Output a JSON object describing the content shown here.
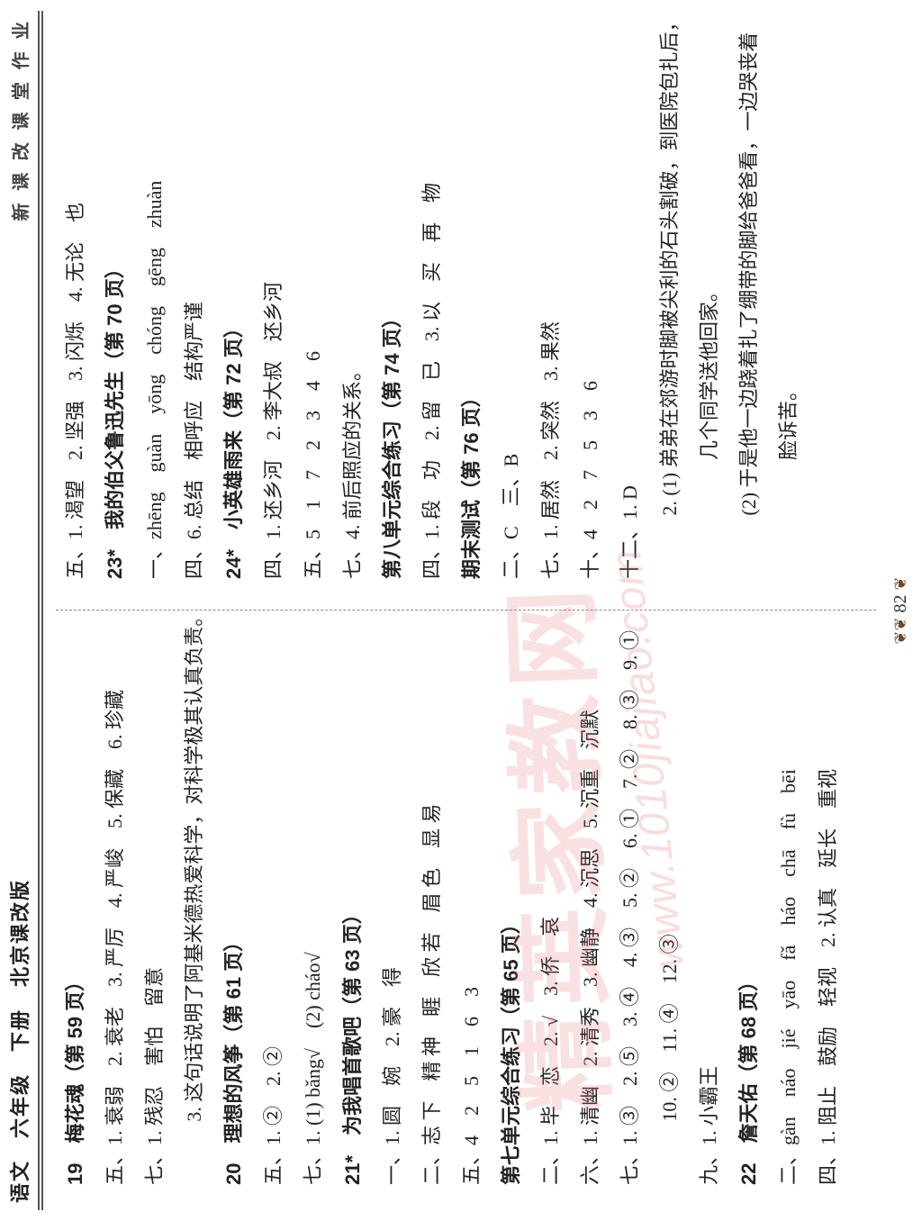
{
  "header": {
    "left": "语文　六年级　下册　北京课改版",
    "right": "新 课 改 课 堂 作 业"
  },
  "watermark": {
    "main": "精英家教网",
    "url": "www.1010jiajiao.com"
  },
  "left": {
    "l01": "19　梅花魂（第 59 页）",
    "l02": "五、1. 衰弱　2. 衰老　3. 严厉　4. 严峻　5. 保藏　6. 珍藏",
    "l03": "七、1. 残忍　害怕　留意",
    "l04": "　3. 这句话说明了阿基米德热爱科学，对科学极其认真负责。",
    "l05": "20　理想的风筝（第 61 页）",
    "l06": "五、1. ②　2. ②",
    "l07": "七、1. (1) bǎng√　(2) cháo√",
    "l08": "21*　为我唱首歌吧（第 63 页）",
    "l09": "一、1. 圆　婉　2. 豪　得",
    "l10": "二、志 下　精 神　睚　欣 若　眉 色　显 易",
    "l11": "五、4　2　5　1　6　3",
    "l12": "第七单元综合练习（第 65 页）",
    "l13": "二、1. 毕　恋　2. √　3. 侨　哀",
    "l14": "六、1. 清幽　2. 清秀　3. 幽静　4. 沉思　5. 沉重　沉默",
    "l15": "七、1. ③　2. ⑤　3. ④　4. ③　5. ②　6. ①　7. ②　8. ③　9. ①",
    "l16": "　10. ②　11. ④　12. ③",
    "l17": "九、1. 小霸王",
    "l18": "22　詹天佑（第 68 页）",
    "l19": "二、gàn　náo　jié　yāo　fǎ　háo　chā　fù　bēi",
    "l20": "四、1. 阻止　鼓励　轻视　2. 认真　延长　重视"
  },
  "right": {
    "r01": "五、1. 渴望　2. 坚强　3. 闪烁　4. 无论　也",
    "r02": "23*　我的伯父鲁迅先生（第 70 页）",
    "r03": "一、zhēng　guàn　yōng　chóng　gēng　zhuàn",
    "r04": "四、6. 总结　相呼应　结构严谨",
    "r05": "24*　小英雄雨来（第 72 页）",
    "r06": "四、1. 还乡河　2. 李大叔　还乡河",
    "r07": "五、5　1　7　2　3　4　6",
    "r08": "七、4. 前后照应的关系。",
    "r09": "第八单元综合练习（第 74 页）",
    "r10": "四、1. 段　功　2. 留　已　3. 以　买　再　物",
    "r11": "期末测试（第 76 页）",
    "r12": "二、C　三、B",
    "r13": "七、1. 居然　2. 突然　3. 果然",
    "r14": "十、4　2　7　5　3　6",
    "r15": "十二、1. D",
    "r16": "　2. (1) 弟弟在郊游时脚被尖利的石头割破，到医院包扎后，",
    "r17": "　　几个同学送他回家。",
    "r18": "　(2) 于是他一边跷着扎了绷带的脚给爸爸看，一边哭丧着",
    "r19": "　　脸诉苦。"
  },
  "footer": {
    "page": "82",
    "deco_left": "❦❦",
    "deco_right": "❦"
  }
}
